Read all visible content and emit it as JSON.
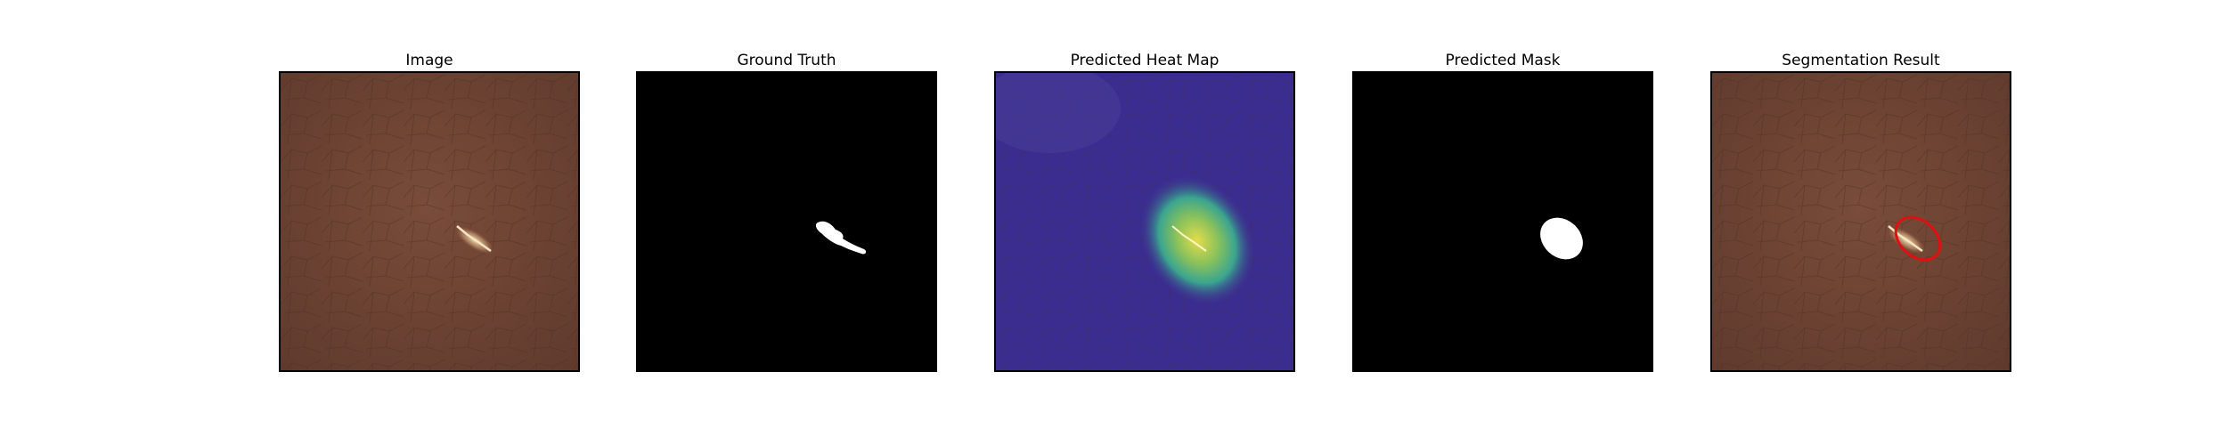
{
  "panels": [
    {
      "title": "Image",
      "kind": "leather-image"
    },
    {
      "title": "Ground Truth",
      "kind": "ground-truth-mask"
    },
    {
      "title": "Predicted Heat Map",
      "kind": "heatmap-overlay"
    },
    {
      "title": "Predicted Mask",
      "kind": "predicted-mask"
    },
    {
      "title": "Segmentation Result",
      "kind": "segmentation-overlay"
    }
  ],
  "colors": {
    "leather": "#6e4433",
    "mask_background": "#000000",
    "mask_foreground": "#ffffff",
    "heat_low": "#3b2c8f",
    "heat_mid": "#3fa58a",
    "heat_high": "#e0d84a",
    "contour": "#e01010"
  }
}
